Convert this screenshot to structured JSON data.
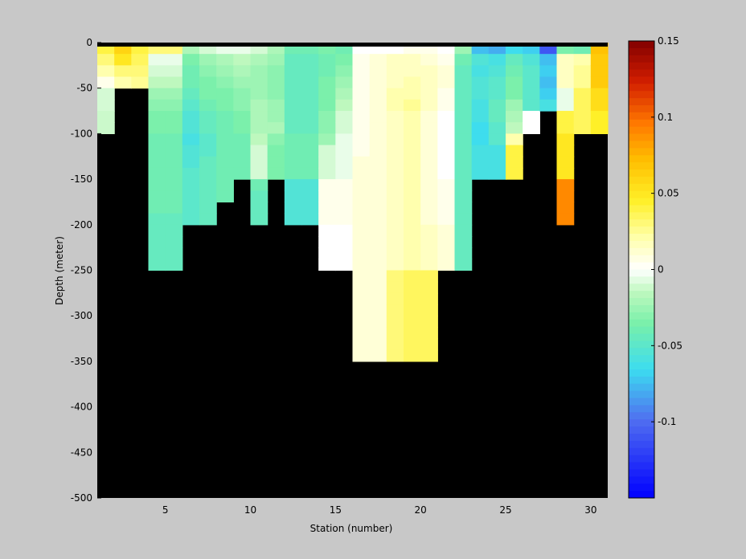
{
  "chart_data": {
    "type": "heatmap",
    "title": "",
    "xlabel": "Station (number)",
    "ylabel": "Depth (meter)",
    "xlim": [
      1,
      31
    ],
    "ylim": [
      -500,
      0
    ],
    "xticks": [
      5,
      10,
      15,
      20,
      25,
      30
    ],
    "yticks": [
      0,
      -50,
      -100,
      -150,
      -200,
      -250,
      -300,
      -350,
      -400,
      -450,
      -500
    ],
    "mask_color": "#000000",
    "colorbar": {
      "range": [
        -0.15,
        0.15
      ],
      "ticks": [
        0.15,
        0.1,
        0.05,
        0,
        -0.05,
        -0.1
      ],
      "tick_labels": [
        "0.15",
        "0.1",
        "0.05",
        "0",
        "-0.05",
        "-0.1"
      ]
    },
    "stations": [
      1,
      2,
      3,
      4,
      5,
      6,
      7,
      8,
      9,
      10,
      11,
      12,
      13,
      14,
      15,
      16,
      17,
      18,
      19,
      20,
      21,
      22,
      23,
      24,
      25,
      26,
      27,
      28,
      29,
      30,
      31
    ],
    "columns": [
      {
        "station": 1,
        "values": [
          0.04,
          0.03,
          0.02,
          0.005,
          -0.01,
          -0.01,
          -0.012,
          -0.012
        ]
      },
      {
        "station": 2,
        "values": [
          0.06,
          0.05,
          0.03,
          0.02
        ]
      },
      {
        "station": 3,
        "values": [
          0.04,
          0.035,
          0.03,
          0.025
        ]
      },
      {
        "station": 4,
        "values": [
          0.03,
          -0.005,
          -0.01,
          -0.015,
          -0.025,
          -0.03,
          -0.035,
          -0.035,
          -0.04,
          -0.04,
          -0.04,
          -0.04,
          -0.04,
          -0.04,
          -0.04,
          -0.045,
          -0.045,
          -0.045,
          -0.045,
          -0.045
        ]
      },
      {
        "station": 5,
        "values": [
          0.03,
          -0.005,
          -0.01,
          -0.015,
          -0.025,
          -0.03,
          -0.035,
          -0.035,
          -0.04,
          -0.04,
          -0.04,
          -0.04,
          -0.04,
          -0.04,
          -0.04,
          -0.045,
          -0.045,
          -0.045,
          -0.045,
          -0.045
        ]
      },
      {
        "station": 6,
        "values": [
          -0.02,
          -0.035,
          -0.04,
          -0.04,
          -0.045,
          -0.05,
          -0.055,
          -0.055,
          -0.06,
          -0.055,
          -0.055,
          -0.05,
          -0.05,
          -0.05,
          -0.05,
          -0.05
        ]
      },
      {
        "station": 7,
        "values": [
          -0.01,
          -0.025,
          -0.03,
          -0.035,
          -0.035,
          -0.04,
          -0.045,
          -0.045,
          -0.05,
          -0.05,
          -0.045,
          -0.045,
          -0.045,
          -0.045,
          -0.045,
          -0.045
        ]
      },
      {
        "station": 8,
        "values": [
          -0.005,
          -0.02,
          -0.025,
          -0.03,
          -0.035,
          -0.035,
          -0.04,
          -0.04,
          -0.04,
          -0.04,
          -0.04,
          -0.04,
          -0.04,
          -0.04
        ]
      },
      {
        "station": 9,
        "values": [
          -0.005,
          -0.015,
          -0.02,
          -0.025,
          -0.03,
          -0.03,
          -0.035,
          -0.035,
          -0.04,
          -0.04,
          -0.04,
          -0.04
        ]
      },
      {
        "station": 10,
        "values": [
          -0.01,
          -0.02,
          -0.025,
          -0.025,
          -0.025,
          -0.02,
          -0.02,
          -0.02,
          -0.015,
          -0.01,
          -0.01,
          -0.01,
          -0.04,
          -0.045,
          -0.045,
          -0.045
        ]
      },
      {
        "station": 11,
        "values": [
          -0.02,
          -0.025,
          -0.03,
          -0.03,
          -0.03,
          -0.025,
          -0.025,
          -0.02,
          -0.03,
          -0.035,
          -0.035,
          -0.035
        ]
      },
      {
        "station": 12,
        "values": [
          -0.04,
          -0.045,
          -0.045,
          -0.045,
          -0.045,
          -0.045,
          -0.045,
          -0.045,
          -0.04,
          -0.04,
          -0.04,
          -0.04,
          -0.055,
          -0.055,
          -0.055,
          -0.055
        ]
      },
      {
        "station": 13,
        "values": [
          -0.04,
          -0.045,
          -0.045,
          -0.045,
          -0.045,
          -0.045,
          -0.045,
          -0.045,
          -0.04,
          -0.04,
          -0.04,
          -0.04,
          -0.055,
          -0.055,
          -0.055,
          -0.055
        ]
      },
      {
        "station": 14,
        "values": [
          -0.035,
          -0.04,
          -0.04,
          -0.035,
          -0.035,
          -0.035,
          -0.03,
          -0.03,
          -0.025,
          -0.01,
          -0.01,
          -0.01,
          0.005,
          0.005,
          0.005,
          0.005,
          0.0,
          0.0,
          0.0,
          0.0
        ]
      },
      {
        "station": 15,
        "values": [
          -0.04,
          -0.035,
          -0.03,
          -0.025,
          -0.02,
          -0.015,
          -0.01,
          -0.01,
          -0.005,
          -0.005,
          -0.005,
          -0.005,
          0.005,
          0.005,
          0.005,
          0.005,
          0.0,
          0.0,
          0.0,
          0.0
        ]
      },
      {
        "station": 16,
        "values": [
          0.0,
          0.005,
          0.005,
          0.005,
          0.005,
          0.005,
          0.005,
          0.005,
          0.005,
          0.005,
          0.01,
          0.01,
          0.01,
          0.01,
          0.01,
          0.01,
          0.01,
          0.01,
          0.01,
          0.01,
          0.01,
          0.01,
          0.01,
          0.01,
          0.01,
          0.01,
          0.01,
          0.01
        ]
      },
      {
        "station": 17,
        "values": [
          0.0,
          0.01,
          0.01,
          0.01,
          0.01,
          0.01,
          0.01,
          0.01,
          0.01,
          0.01,
          0.01,
          0.01,
          0.01,
          0.01,
          0.01,
          0.01,
          0.01,
          0.01,
          0.01,
          0.01,
          0.01,
          0.01,
          0.01,
          0.01,
          0.01,
          0.01,
          0.01,
          0.01
        ]
      },
      {
        "station": 18,
        "values": [
          0.0,
          0.015,
          0.015,
          0.015,
          0.02,
          0.02,
          0.015,
          0.015,
          0.015,
          0.015,
          0.015,
          0.015,
          0.015,
          0.015,
          0.015,
          0.015,
          0.015,
          0.015,
          0.015,
          0.015,
          0.03,
          0.03,
          0.03,
          0.03,
          0.03,
          0.03,
          0.03,
          0.03
        ]
      },
      {
        "station": 19,
        "values": [
          0.005,
          0.015,
          0.015,
          0.02,
          0.02,
          0.025,
          0.02,
          0.02,
          0.02,
          0.02,
          0.02,
          0.02,
          0.02,
          0.02,
          0.02,
          0.02,
          0.02,
          0.02,
          0.02,
          0.02,
          0.035,
          0.035,
          0.035,
          0.035,
          0.035,
          0.035,
          0.035,
          0.035
        ]
      },
      {
        "station": 20,
        "values": [
          0.005,
          0.01,
          0.015,
          0.015,
          0.015,
          0.015,
          0.01,
          0.01,
          0.01,
          0.01,
          0.01,
          0.01,
          0.01,
          0.01,
          0.01,
          0.01,
          0.015,
          0.015,
          0.015,
          0.015,
          0.035,
          0.035,
          0.035,
          0.035,
          0.035,
          0.035,
          0.035,
          0.035
        ]
      },
      {
        "station": 21,
        "values": [
          0.0,
          0.005,
          0.01,
          0.01,
          0.005,
          0.005,
          0.0,
          0.0,
          0.0,
          0.0,
          0.0,
          0.0,
          0.005,
          0.005,
          0.005,
          0.005,
          0.01,
          0.01,
          0.01,
          0.01
        ]
      },
      {
        "station": 22,
        "values": [
          -0.025,
          -0.04,
          -0.045,
          -0.045,
          -0.045,
          -0.045,
          -0.045,
          -0.045,
          -0.045,
          -0.045,
          -0.045,
          -0.045,
          -0.045,
          -0.045,
          -0.045,
          -0.045,
          -0.045,
          -0.045,
          -0.045,
          -0.045
        ]
      },
      {
        "station": 23,
        "values": [
          -0.075,
          -0.055,
          -0.06,
          -0.055,
          -0.055,
          -0.06,
          -0.06,
          -0.065,
          -0.065,
          -0.06,
          -0.06,
          -0.06
        ]
      },
      {
        "station": 24,
        "values": [
          -0.08,
          -0.06,
          -0.055,
          -0.05,
          -0.05,
          -0.045,
          -0.045,
          -0.05,
          -0.05,
          -0.06,
          -0.06,
          -0.06
        ]
      },
      {
        "station": 25,
        "values": [
          -0.065,
          -0.045,
          -0.04,
          -0.035,
          -0.035,
          -0.025,
          -0.02,
          -0.015,
          0.02,
          0.04,
          0.04,
          0.04
        ]
      },
      {
        "station": 26,
        "values": [
          -0.07,
          -0.055,
          -0.05,
          -0.05,
          -0.05,
          -0.05,
          0.0,
          0.0
        ]
      },
      {
        "station": 27,
        "values": [
          -0.11,
          -0.075,
          -0.07,
          -0.075,
          -0.07,
          -0.06
        ]
      },
      {
        "station": 28,
        "values": [
          -0.035,
          0.015,
          0.015,
          0.015,
          -0.005,
          -0.005,
          0.04,
          0.04,
          0.05,
          0.05,
          0.05,
          0.05,
          0.09,
          0.09,
          0.09,
          0.09
        ]
      },
      {
        "station": 29,
        "values": [
          -0.04,
          0.02,
          0.025,
          0.025,
          0.035,
          0.035,
          0.035,
          0.035
        ]
      },
      {
        "station": 30,
        "values": [
          0.07,
          0.065,
          0.065,
          0.065,
          0.055,
          0.055,
          0.045,
          0.045
        ]
      }
    ]
  }
}
